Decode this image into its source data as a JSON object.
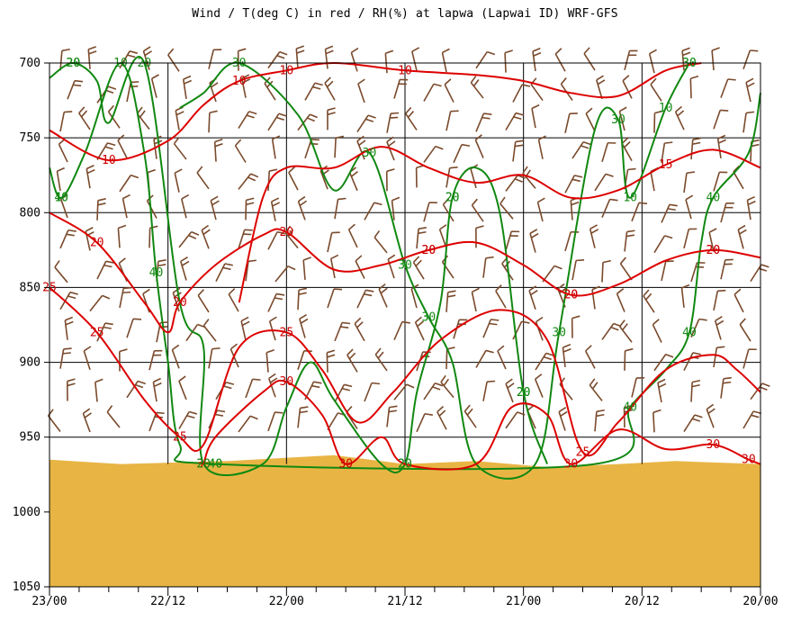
{
  "chart_data": {
    "type": "line",
    "title": "Wind / T(deg C) in red / RH(%) at lapwa (Lapwai ID)  WRF-GFS",
    "y_axis": {
      "label": "",
      "ticks": [
        700,
        750,
        800,
        850,
        900,
        950,
        1000,
        1050
      ],
      "range": [
        700,
        1050
      ]
    },
    "x_axis": {
      "label": "",
      "ticks": [
        "23/00",
        "22/12",
        "22/00",
        "21/12",
        "21/00",
        "20/12",
        "20/00"
      ]
    },
    "grid": true,
    "colors": {
      "temperature": "#dd0000",
      "rh": "#118811",
      "wind": "#7a4a2c",
      "terrain": "#e8b545"
    },
    "temperature_labels": [
      "10",
      "10",
      "10",
      "15",
      "20",
      "20",
      "25",
      "25",
      "25",
      "30",
      "30",
      "30",
      "30",
      "20",
      "20",
      "20",
      "30",
      "20",
      "20",
      "25",
      "10",
      "20",
      "20",
      "25",
      "30"
    ],
    "rh_labels": [
      "40",
      "20",
      "30",
      "40",
      "30",
      "30",
      "20",
      "30",
      "40",
      "20",
      "10",
      "20",
      "20",
      "30",
      "20",
      "40",
      "10",
      "10",
      "20",
      "20",
      "20",
      "20",
      "30",
      "30",
      "40",
      "40",
      "30",
      "40",
      "20",
      "10"
    ],
    "series": [
      {
        "name": "T 10",
        "kind": "temperature",
        "points": [
          [
            23.0,
            745
          ],
          [
            22.75,
            765
          ],
          [
            22.5,
            752
          ],
          [
            22.35,
            728
          ],
          [
            22.2,
            712
          ],
          [
            22.0,
            705
          ],
          [
            21.8,
            700
          ],
          [
            21.5,
            705
          ],
          [
            21.2,
            708
          ],
          [
            21.0,
            712
          ],
          [
            20.8,
            720
          ],
          [
            20.6,
            722
          ],
          [
            20.4,
            705
          ],
          [
            20.25,
            700
          ]
        ]
      },
      {
        "name": "T 15",
        "kind": "temperature",
        "points": [
          [
            22.2,
            860
          ],
          [
            22.1,
            790
          ],
          [
            22.0,
            770
          ],
          [
            21.8,
            770
          ],
          [
            21.6,
            756
          ],
          [
            21.4,
            770
          ],
          [
            21.2,
            780
          ],
          [
            21.0,
            775
          ],
          [
            20.8,
            790
          ],
          [
            20.6,
            785
          ],
          [
            20.4,
            768
          ],
          [
            20.2,
            758
          ],
          [
            20.0,
            770
          ]
        ]
      },
      {
        "name": "T 20",
        "kind": "temperature",
        "points": [
          [
            23.0,
            800
          ],
          [
            22.8,
            820
          ],
          [
            22.6,
            860
          ],
          [
            22.5,
            880
          ],
          [
            22.45,
            860
          ],
          [
            22.3,
            835
          ],
          [
            22.1,
            815
          ],
          [
            22.0,
            813
          ],
          [
            21.8,
            838
          ],
          [
            21.6,
            835
          ],
          [
            21.4,
            825
          ],
          [
            21.2,
            820
          ],
          [
            21.0,
            835
          ],
          [
            20.8,
            855
          ],
          [
            20.6,
            848
          ],
          [
            20.4,
            832
          ],
          [
            20.2,
            825
          ],
          [
            20.0,
            830
          ]
        ]
      },
      {
        "name": "T 25",
        "kind": "temperature",
        "points": [
          [
            23.0,
            850
          ],
          [
            22.8,
            880
          ],
          [
            22.6,
            925
          ],
          [
            22.45,
            950
          ],
          [
            22.35,
            955
          ],
          [
            22.2,
            890
          ],
          [
            22.0,
            880
          ],
          [
            21.85,
            905
          ],
          [
            21.7,
            940
          ],
          [
            21.55,
            920
          ],
          [
            21.35,
            885
          ],
          [
            21.1,
            865
          ],
          [
            20.9,
            885
          ],
          [
            20.75,
            960
          ],
          [
            20.6,
            940
          ],
          [
            20.4,
            905
          ],
          [
            20.2,
            895
          ],
          [
            20.1,
            905
          ],
          [
            20.0,
            920
          ]
        ]
      },
      {
        "name": "T 30",
        "kind": "temperature",
        "points": [
          [
            22.35,
            968
          ],
          [
            22.3,
            950
          ],
          [
            22.1,
            920
          ],
          [
            22.0,
            913
          ],
          [
            21.85,
            935
          ],
          [
            21.75,
            968
          ],
          [
            21.6,
            950
          ],
          [
            21.5,
            968
          ],
          [
            21.2,
            968
          ],
          [
            21.05,
            930
          ],
          [
            20.9,
            935
          ],
          [
            20.8,
            968
          ],
          [
            20.6,
            945
          ],
          [
            20.4,
            958
          ],
          [
            20.2,
            955
          ],
          [
            20.05,
            965
          ],
          [
            20.0,
            968
          ]
        ]
      },
      {
        "name": "RH 20",
        "kind": "rh",
        "points": [
          [
            23.0,
            710
          ],
          [
            22.9,
            700
          ],
          [
            22.8,
            712
          ],
          [
            22.75,
            740
          ],
          [
            22.6,
            700
          ],
          [
            22.45,
            860
          ],
          [
            22.35,
            890
          ],
          [
            22.35,
            968
          ],
          [
            22.1,
            968
          ],
          [
            22.0,
            930
          ],
          [
            21.9,
            900
          ],
          [
            21.8,
            925
          ],
          [
            21.6,
            968
          ],
          [
            21.5,
            968
          ],
          [
            21.45,
            920
          ],
          [
            21.35,
            860
          ],
          [
            21.3,
            790
          ],
          [
            21.2,
            770
          ],
          [
            21.1,
            800
          ],
          [
            21.0,
            920
          ],
          [
            20.9,
            968
          ]
        ]
      },
      {
        "name": "RH 30",
        "kind": "rh",
        "points": [
          [
            22.45,
            730
          ],
          [
            22.35,
            720
          ],
          [
            22.2,
            700
          ],
          [
            21.95,
            735
          ],
          [
            21.8,
            785
          ],
          [
            21.65,
            760
          ],
          [
            21.5,
            835
          ],
          [
            21.4,
            870
          ],
          [
            21.3,
            900
          ],
          [
            21.2,
            968
          ],
          [
            20.95,
            968
          ],
          [
            20.85,
            880
          ],
          [
            20.7,
            745
          ],
          [
            20.6,
            738
          ],
          [
            20.55,
            790
          ],
          [
            20.4,
            730
          ],
          [
            20.3,
            700
          ]
        ]
      },
      {
        "name": "RH 40",
        "kind": "rh",
        "points": [
          [
            23.0,
            770
          ],
          [
            22.95,
            790
          ],
          [
            22.85,
            760
          ],
          [
            22.7,
            700
          ],
          [
            22.6,
            760
          ],
          [
            22.55,
            840
          ],
          [
            22.5,
            900
          ],
          [
            22.45,
            955
          ],
          [
            22.3,
            968
          ],
          [
            20.7,
            968
          ],
          [
            20.55,
            930
          ],
          [
            20.4,
            905
          ],
          [
            20.3,
            880
          ],
          [
            20.25,
            820
          ],
          [
            20.2,
            790
          ],
          [
            20.05,
            760
          ],
          [
            20.0,
            720
          ]
        ]
      }
    ]
  }
}
